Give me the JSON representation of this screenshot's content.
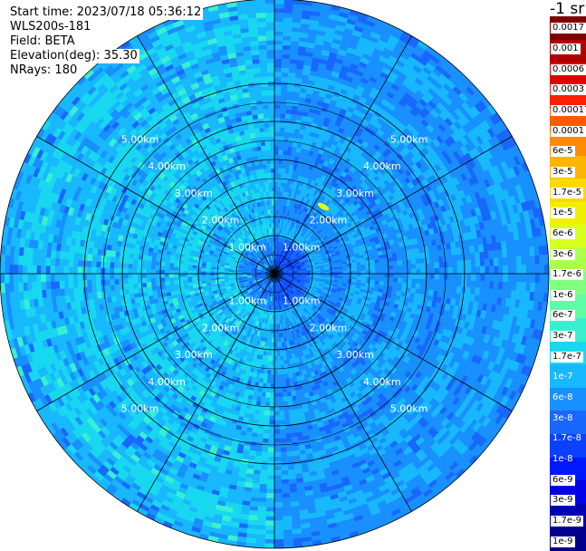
{
  "info": {
    "start_time": "Start time: 2023/07/18 05:36:12",
    "instrument": "WLS200s-181",
    "field": "Field: BETA",
    "elevation": "Elevation(deg): 35.30",
    "nrays": "NRays: 180"
  },
  "unit_label": "-1 sr",
  "chart_data": {
    "type": "heatmap",
    "projection": "polar-ppi",
    "field": "BETA",
    "elevation_deg": 35.3,
    "n_rays": 180,
    "range_rings_km": [
      1.0,
      2.0,
      3.0,
      4.0,
      5.0
    ],
    "ring_labels": [
      "1.00km",
      "2.00km",
      "3.00km",
      "4.00km",
      "5.00km"
    ],
    "azimuth_spokes_deg": [
      0,
      30,
      60,
      90,
      120,
      150,
      180,
      210,
      240,
      270,
      300,
      330
    ],
    "max_range_km": 5.7,
    "colorbar": {
      "scale": "log",
      "labels": [
        "0.0017",
        "0.001",
        "0.0006",
        "0.0003",
        "0.00017",
        "0.0001",
        "6e-5",
        "3e-5",
        "1.7e-5",
        "1e-5",
        "6e-6",
        "3e-6",
        "1.7e-6",
        "1e-6",
        "6e-7",
        "3e-7",
        "1.7e-7",
        "1e-7",
        "6e-8",
        "3e-8",
        "1.7e-8",
        "1e-8",
        "6e-9",
        "3e-9",
        "1.7e-9",
        "1e-9"
      ],
      "colors": [
        "#7f0000",
        "#b00000",
        "#e00000",
        "#ff2000",
        "#ff5a00",
        "#ff8c00",
        "#ffb400",
        "#ffd800",
        "#f0f000",
        "#d8ff20",
        "#aaff4c",
        "#80ff80",
        "#5cffa8",
        "#38f0d0",
        "#18d8f0",
        "#18b8ff",
        "#1890ff",
        "#1868ff",
        "#0b40ff",
        "#0018ff",
        "#0000e6",
        "#0000b4",
        "#00008c"
      ]
    },
    "dominant_values": {
      "west_half": "1e-7 to 3e-7",
      "east_half": "1e-8 to 6e-8",
      "center": "1e-8 to 3e-8",
      "hotspot_northeast_near_2km": "1e-5"
    }
  }
}
